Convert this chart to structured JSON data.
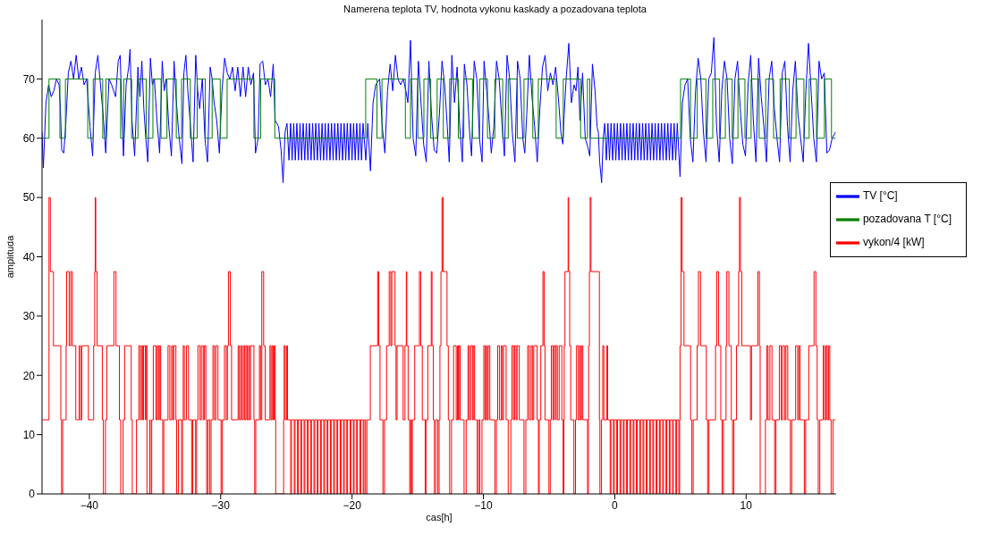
{
  "chart_data": {
    "type": "line",
    "title": "Namerena teplota TV, hodnota vykonu  kaskady a pozadovana teplota",
    "xlabel": "cas[h]",
    "ylabel": "amplituda",
    "xlim": [
      -43.6,
      16.85
    ],
    "xticks": [
      -40,
      -30,
      -20,
      -10,
      0,
      10
    ],
    "ylim": [
      0,
      80
    ],
    "yticks": [
      0,
      10,
      20,
      30,
      40,
      50,
      60,
      70
    ],
    "grid": false,
    "legend": "right",
    "series": [
      {
        "name": "TV [°C]",
        "color": "#0000ff",
        "x": [
          -43.6,
          -43.5,
          -43.3,
          -43.1,
          -42.9,
          -42.7,
          -42.5,
          -42.3,
          -42.2,
          -42.1,
          -41.95,
          -41.8,
          -41.6,
          -41.4,
          -41.2,
          -41.0,
          -40.8,
          -40.6,
          -40.4,
          -40.2,
          -39.95,
          -39.75,
          -39.55,
          -39.35,
          -39.15,
          -38.95,
          -38.75,
          -38.5,
          -38.3,
          -38.0,
          -37.8,
          -37.65,
          -37.5,
          -37.4,
          -37.2,
          -37.0,
          -36.9,
          -36.75,
          -36.55,
          -36.3,
          -36.15,
          -36.0,
          -35.85,
          -35.7,
          -35.55,
          -35.35,
          -35.2,
          -35.05,
          -34.85,
          -34.65,
          -34.45,
          -34.3,
          -34.15,
          -33.95,
          -33.75,
          -33.55,
          -33.4,
          -33.2,
          -32.95,
          -32.8,
          -32.65,
          -32.5,
          -32.3,
          -32.1,
          -31.9,
          -31.75,
          -31.6,
          -31.4,
          -31.2,
          -31.0,
          -30.8,
          -30.65,
          -30.5,
          -30.3,
          -30.1,
          -29.9,
          -29.7,
          -29.5,
          -29.3,
          -29.1,
          -28.9,
          -28.7,
          -28.5,
          -28.3,
          -28.1,
          -27.9,
          -27.7,
          -27.5,
          -27.35,
          -27.15,
          -27.0,
          -26.8,
          -26.6,
          -26.4,
          -26.2,
          -26.0,
          -25.85,
          -25.6,
          -25.4,
          -25.25,
          -25.1,
          -24.95,
          -24.8,
          -24.68,
          -24.56,
          -24.44,
          -24.32,
          -24.2,
          -24.08,
          -23.96,
          -23.84,
          -23.72,
          -23.6,
          -23.48,
          -23.36,
          -23.24,
          -23.12,
          -23.0,
          -22.88,
          -22.76,
          -22.64,
          -22.52,
          -22.4,
          -22.28,
          -22.16,
          -22.04,
          -21.92,
          -21.8,
          -21.68,
          -21.56,
          -21.44,
          -21.32,
          -21.2,
          -21.08,
          -20.96,
          -20.84,
          -20.72,
          -20.6,
          -20.48,
          -20.36,
          -20.24,
          -20.12,
          -20.0,
          -19.88,
          -19.76,
          -19.64,
          -19.52,
          -19.4,
          -19.28,
          -19.16,
          -18.95,
          -18.8,
          -18.6,
          -18.4,
          -18.2,
          -18.05,
          -17.9,
          -17.7,
          -17.5,
          -17.3,
          -17.1,
          -16.9,
          -16.7,
          -16.5,
          -16.3,
          -16.1,
          -15.9,
          -15.75,
          -15.55,
          -15.35,
          -15.15,
          -14.95,
          -14.75,
          -14.55,
          -14.35,
          -14.15,
          -13.95,
          -13.75,
          -13.55,
          -13.35,
          -13.15,
          -12.95,
          -12.75,
          -12.6,
          -12.4,
          -12.2,
          -12.0,
          -11.8,
          -11.6,
          -11.45,
          -11.25,
          -11.05,
          -10.9,
          -10.7,
          -10.5,
          -10.3,
          -10.1,
          -9.95,
          -9.75,
          -9.6,
          -9.4,
          -9.2,
          -9.0,
          -8.8,
          -8.6,
          -8.4,
          -8.2,
          -8.0,
          -7.8,
          -7.6,
          -7.4,
          -7.2,
          -7.0,
          -6.85,
          -6.7,
          -6.5,
          -6.3,
          -6.1,
          -5.9,
          -5.7,
          -5.5,
          -5.3,
          -5.1,
          -4.9,
          -4.7,
          -4.5,
          -4.3,
          -4.1,
          -3.95,
          -3.85,
          -3.7,
          -3.5,
          -3.3,
          -3.1,
          -2.95,
          -2.8,
          -2.65,
          -2.45,
          -2.25,
          -2.05,
          -1.9,
          -1.7,
          -1.5,
          -1.35,
          -1.25,
          -1.15,
          -1.0,
          -0.88,
          -0.76,
          -0.64,
          -0.52,
          -0.4,
          -0.28,
          -0.16,
          -0.04,
          0.08,
          0.2,
          0.32,
          0.44,
          0.56,
          0.68,
          0.8,
          0.92,
          1.04,
          1.16,
          1.28,
          1.4,
          1.52,
          1.64,
          1.76,
          1.88,
          2.0,
          2.12,
          2.24,
          2.36,
          2.48,
          2.6,
          2.72,
          2.84,
          2.96,
          3.08,
          3.2,
          3.32,
          3.44,
          3.56,
          3.68,
          3.8,
          3.92,
          4.04,
          4.16,
          4.28,
          4.4,
          4.52,
          4.64,
          4.76,
          4.97,
          5.15,
          5.35,
          5.55,
          5.75,
          5.95,
          6.15,
          6.35,
          6.55,
          6.75,
          6.95,
          7.15,
          7.35,
          7.55,
          7.75,
          7.95,
          8.15,
          8.35,
          8.55,
          8.75,
          8.95,
          9.15,
          9.35,
          9.55,
          9.75,
          9.95,
          10.15,
          10.35,
          10.55,
          10.75,
          10.95,
          11.15,
          11.35,
          11.55,
          11.75,
          11.95,
          12.15,
          12.35,
          12.55,
          12.75,
          12.95,
          13.15,
          13.35,
          13.55,
          13.75,
          13.95,
          14.15,
          14.35,
          14.55,
          14.75,
          14.95,
          15.15,
          15.35,
          15.55,
          15.75,
          15.95,
          16.15,
          16.35,
          16.55,
          16.8
        ],
        "values": [
          61,
          55,
          66,
          69,
          67,
          68,
          70,
          69,
          65,
          58,
          57.5,
          62,
          71,
          73,
          70,
          74,
          70,
          72,
          69,
          70,
          62,
          57,
          71,
          74,
          69,
          64,
          57.5,
          70,
          69,
          67,
          73,
          74,
          63,
          57,
          69,
          72,
          75,
          63,
          57,
          72,
          67,
          73,
          65,
          60,
          56,
          73.5,
          69,
          70,
          63,
          57.5,
          73,
          68,
          70,
          62,
          57,
          73,
          67,
          61,
          55.7,
          71,
          74,
          68,
          62,
          56,
          74,
          68,
          65,
          70,
          60,
          56,
          72,
          70,
          66,
          63,
          57.5,
          68,
          73.5,
          71,
          70,
          72,
          68,
          72,
          67,
          72,
          67,
          72,
          69,
          71,
          57.5,
          60,
          72.5,
          73,
          69,
          70,
          67,
          72.5,
          63,
          62,
          58,
          52.5,
          61,
          62.5,
          56.3,
          62.5,
          56.3,
          62.5,
          56.3,
          62.5,
          56.3,
          62.5,
          56.3,
          62.5,
          56.3,
          62.5,
          56.3,
          62.5,
          56.3,
          62.5,
          56.3,
          62.5,
          56.3,
          62.5,
          56.3,
          62.5,
          56.3,
          62.5,
          56.3,
          62.5,
          56.3,
          62.5,
          56.3,
          62.5,
          56.3,
          62.5,
          56.3,
          62.5,
          56.3,
          62.5,
          56.3,
          62.5,
          56.3,
          62.5,
          56.3,
          62.5,
          56.3,
          62.5,
          56.3,
          62.5,
          56.3,
          62.5,
          56.3,
          62.5,
          54.5,
          66,
          69,
          69.5,
          70,
          62,
          57.5,
          68,
          72.5,
          68,
          74,
          70,
          69,
          70,
          68,
          66,
          76.5,
          60,
          57,
          73,
          66,
          59,
          56,
          73,
          64,
          58,
          57.5,
          64,
          73,
          69,
          62,
          56,
          74,
          66,
          72,
          62,
          56,
          72.5,
          69,
          61,
          57,
          73,
          70,
          60,
          56,
          73,
          68,
          64,
          57.5,
          62,
          73,
          70,
          63,
          57,
          74,
          70,
          61,
          56,
          73,
          70,
          60,
          57.5,
          64,
          74,
          67,
          62,
          56,
          65,
          72,
          74,
          68,
          71,
          69,
          72,
          67,
          61,
          59,
          64,
          70,
          76,
          66,
          69,
          68,
          72,
          63,
          71,
          60,
          58.5,
          57,
          72.5,
          68,
          62,
          61,
          56,
          52.5,
          60,
          62.5,
          56.3,
          62.5,
          56.3,
          62.5,
          56.3,
          62.5,
          56.3,
          62.5,
          56.3,
          62.5,
          56.3,
          62.5,
          56.3,
          62.5,
          56.3,
          62.5,
          56.3,
          62.5,
          56.3,
          62.5,
          56.3,
          62.5,
          56.3,
          62.5,
          56.3,
          62.5,
          56.3,
          62.5,
          56.3,
          62.5,
          56.3,
          62.5,
          56.3,
          62.5,
          56.3,
          62.5,
          56.3,
          62.5,
          56.3,
          62.5,
          56.3,
          62.5,
          56.3,
          62.5,
          56.3,
          62.5,
          53.5,
          66,
          69,
          70,
          60,
          56,
          68,
          73.5,
          70,
          61,
          56,
          70,
          71,
          77,
          62,
          56,
          68,
          73,
          70,
          60,
          55.7,
          70,
          73,
          65,
          59,
          57,
          69,
          74,
          63,
          56,
          73.5,
          67,
          62,
          56,
          70,
          73,
          65,
          60,
          56,
          71,
          73,
          62,
          56,
          68,
          73,
          64,
          60,
          56,
          68,
          76,
          68,
          60,
          56,
          73,
          70,
          71,
          57.5,
          58,
          60,
          61
        ]
      },
      {
        "name": "pozadovana T [°C]",
        "color": "#008000",
        "type": "step",
        "x": [
          -43.57,
          -43.07,
          -42.24,
          -41.82,
          -40.12,
          -39.7,
          -38.98,
          -38.74,
          -37.62,
          -37.38,
          -36.78,
          -36.3,
          -35.67,
          -35.16,
          -34.54,
          -34.09,
          -33.38,
          -32.98,
          -32.31,
          -31.79,
          -31.17,
          -30.65,
          -30.03,
          -29.51,
          -27.47,
          -26.95,
          -25.88,
          -18.96,
          -18.1,
          -17.72,
          -15.94,
          -15.55,
          -14.99,
          -14.53,
          -14.01,
          -13.52,
          -13.05,
          -12.57,
          -11.91,
          -11.49,
          -10.83,
          -10.29,
          -9.69,
          -9.13,
          -8.53,
          -8.11,
          -7.42,
          -6.91,
          -6.24,
          -5.82,
          -4.46,
          -3.92,
          -2.6,
          -2.08,
          -1.9,
          5.01,
          5.77,
          6.28,
          6.94,
          7.46,
          7.98,
          8.42,
          8.94,
          9.38,
          9.91,
          10.38,
          10.99,
          11.49,
          12.09,
          12.59,
          13.29,
          13.8,
          14.4,
          14.8,
          15.36,
          15.96,
          16.5,
          16.8
        ],
        "values": [
          60,
          70,
          60,
          70,
          60,
          70,
          60,
          70,
          60,
          70,
          60,
          70,
          60,
          70,
          60,
          70,
          60,
          70,
          60,
          70,
          60,
          70,
          60,
          70,
          60,
          70,
          60,
          70,
          60,
          70,
          60,
          70,
          60,
          70,
          60,
          70,
          60,
          70,
          60,
          70,
          60,
          70,
          60,
          70,
          60,
          70,
          60,
          70,
          60,
          70,
          60,
          70,
          60,
          70,
          60,
          70,
          60,
          70,
          60,
          70,
          60,
          70,
          60,
          70,
          60,
          70,
          60,
          70,
          60,
          70,
          60,
          70,
          60,
          70,
          60,
          70,
          60,
          60
        ]
      },
      {
        "name": "vykon/4 [kW]",
        "color": "#ff0000",
        "type": "step",
        "x": [
          -43.57,
          -43.07,
          -42.97,
          -42.73,
          -42.17,
          -42.11,
          -42.03,
          -41.77,
          -41.73,
          -41.53,
          -41.41,
          -41.29,
          -41.03,
          -40.77,
          -40.67,
          -40.57,
          -40.07,
          -39.67,
          -39.59,
          -39.55,
          -39.51,
          -39.41,
          -39.01,
          -38.93,
          -38.77,
          -38.67,
          -38.13,
          -37.97,
          -37.71,
          -37.61,
          -37.43,
          -37.31,
          -36.81,
          -36.73,
          -36.41,
          -36.23,
          -36.11,
          -36.03,
          -35.93,
          -35.87,
          -35.73,
          -35.69,
          -35.61,
          -35.41,
          -35.37,
          -35.25,
          -35.13,
          -34.93,
          -34.83,
          -34.73,
          -34.67,
          -34.57,
          -34.41,
          -34.33,
          -34.01,
          -33.87,
          -33.73,
          -33.65,
          -33.57,
          -33.41,
          -33.35,
          -33.21,
          -32.97,
          -32.91,
          -32.85,
          -32.77,
          -32.61,
          -32.45,
          -32.21,
          -32.13,
          -31.91,
          -31.83,
          -31.73,
          -31.57,
          -31.47,
          -31.33,
          -31.25,
          -31.13,
          -31.07,
          -30.97,
          -30.83,
          -30.73,
          -30.59,
          -30.47,
          -30.37,
          -30.21,
          -29.97,
          -29.87,
          -29.71,
          -29.57,
          -29.49,
          -29.41,
          -29.27,
          -29.17,
          -28.67,
          -28.57,
          -28.47,
          -28.37,
          -28.27,
          -28.17,
          -28.07,
          -27.97,
          -27.87,
          -27.81,
          -27.73,
          -27.47,
          -27.41,
          -27.33,
          -27.05,
          -26.97,
          -26.87,
          -26.73,
          -26.61,
          -26.25,
          -26.17,
          -26.09,
          -26.01,
          -25.93,
          -25.85,
          -25.81,
          -25.21,
          -25.17,
          -25.09,
          -24.97,
          -24.91,
          -24.67,
          -24.61,
          -24.4,
          -24.34,
          -24.15,
          -24.09,
          -23.9,
          -23.84,
          -23.65,
          -23.59,
          -23.4,
          -23.34,
          -23.15,
          -23.09,
          -22.9,
          -22.84,
          -22.65,
          -22.59,
          -22.4,
          -22.34,
          -22.15,
          -22.09,
          -21.9,
          -21.84,
          -21.65,
          -21.59,
          -21.4,
          -21.34,
          -21.15,
          -21.09,
          -20.9,
          -20.84,
          -20.65,
          -20.59,
          -20.4,
          -20.34,
          -20.15,
          -20.09,
          -19.9,
          -19.84,
          -19.65,
          -19.59,
          -19.4,
          -19.34,
          -19.15,
          -19.09,
          -18.97,
          -18.87,
          -18.61,
          -18.05,
          -17.97,
          -17.87,
          -17.65,
          -17.53,
          -17.37,
          -17.17,
          -17.05,
          -16.97,
          -16.73,
          -16.65,
          -16.57,
          -16.11,
          -15.97,
          -15.87,
          -15.83,
          -15.73,
          -15.61,
          -15.53,
          -15.47,
          -15.41,
          -15.23,
          -14.87,
          -14.77,
          -14.65,
          -14.43,
          -14.37,
          -14.23,
          -13.97,
          -13.91,
          -13.81,
          -13.73,
          -13.63,
          -13.47,
          -13.37,
          -13.31,
          -13.23,
          -13.15,
          -13.07,
          -12.77,
          -12.67,
          -12.57,
          -12.43,
          -12.27,
          -12.07,
          -11.97,
          -11.91,
          -11.87,
          -11.77,
          -11.47,
          -11.31,
          -11.17,
          -11.07,
          -10.97,
          -10.83,
          -10.77,
          -10.67,
          -10.47,
          -10.37,
          -10.27,
          -10.11,
          -9.97,
          -9.87,
          -9.77,
          -9.71,
          -9.63,
          -9.51,
          -9.13,
          -9.01,
          -8.91,
          -8.77,
          -8.63,
          -8.55,
          -8.47,
          -8.27,
          -8.11,
          -7.91,
          -7.83,
          -7.71,
          -7.63,
          -7.51,
          -7.43,
          -7.27,
          -6.91,
          -6.77,
          -6.63,
          -6.51,
          -6.37,
          -6.27,
          -6.17,
          -5.91,
          -5.81,
          -5.75,
          -5.63,
          -5.47,
          -5.37,
          -5.31,
          -5.01,
          -4.91,
          -4.83,
          -4.71,
          -4.63,
          -4.51,
          -4.47,
          -4.37,
          -4.23,
          -4.03,
          -3.93,
          -3.87,
          -3.85,
          -3.79,
          -3.55,
          -3.51,
          -3.43,
          -3.35,
          -3.11,
          -2.99,
          -2.91,
          -2.77,
          -2.67,
          -2.61,
          -2.53,
          -2.43,
          -2.07,
          -2.01,
          -1.99,
          -1.93,
          -1.87,
          -1.81,
          -1.17,
          -1.13,
          -1.01,
          -0.91,
          -0.83,
          -0.6,
          -0.54,
          -0.35,
          -0.29,
          -0.1,
          -0.04,
          0.15,
          0.21,
          0.4,
          0.46,
          0.65,
          0.71,
          0.9,
          0.96,
          1.15,
          1.21,
          1.4,
          1.46,
          1.65,
          1.71,
          1.9,
          1.96,
          2.15,
          2.21,
          2.4,
          2.46,
          2.65,
          2.71,
          2.9,
          2.96,
          3.15,
          3.21,
          3.4,
          3.46,
          3.65,
          3.71,
          3.9,
          3.96,
          4.15,
          4.21,
          4.4,
          4.46,
          4.65,
          4.71,
          4.88,
          4.94,
          4.97,
          5.05,
          5.13,
          5.27,
          5.77,
          5.87,
          5.97,
          6.27,
          6.37,
          6.53,
          6.97,
          7.07,
          7.17,
          7.67,
          7.77,
          7.91,
          8.07,
          8.17,
          8.27,
          8.47,
          8.53,
          8.69,
          8.87,
          8.97,
          9.07,
          9.27,
          9.43,
          9.49,
          9.57,
          9.67,
          10.33,
          10.41,
          10.89,
          11.01,
          11.07,
          11.47,
          11.57,
          11.67,
          11.81,
          11.97,
          12.17,
          12.27,
          12.53,
          12.67,
          12.77,
          12.93,
          13.03,
          13.17,
          13.37,
          13.47,
          13.77,
          13.93,
          14.01,
          14.11,
          14.43,
          14.53,
          14.77,
          15.17,
          15.31,
          15.41,
          15.49,
          15.61,
          15.87,
          15.97,
          16.07,
          16.17,
          16.27,
          16.37,
          16.47,
          16.61,
          16.8
        ],
        "values": [
          12.5,
          50,
          37.5,
          25,
          12.5,
          0,
          12.5,
          25,
          37.5,
          25,
          37.5,
          25,
          12.5,
          25,
          12.5,
          25,
          12.5,
          25,
          37.5,
          50,
          37.5,
          25,
          12.5,
          0,
          12.5,
          25,
          37.5,
          25,
          12.5,
          0,
          12.5,
          25,
          12.5,
          0,
          12.5,
          25,
          12.5,
          25,
          12.5,
          25,
          12.5,
          25,
          0,
          12.5,
          0,
          12.5,
          25,
          12.5,
          25,
          12.5,
          25,
          12.5,
          0,
          12.5,
          25,
          12.5,
          25,
          12.5,
          25,
          12.5,
          0,
          12.5,
          0,
          12.5,
          25,
          12.5,
          25,
          12.5,
          0,
          12.5,
          0,
          12.5,
          25,
          12.5,
          25,
          12.5,
          25,
          12.5,
          0,
          12.5,
          0,
          12.5,
          25,
          12.5,
          25,
          12.5,
          0,
          12.5,
          25,
          12.5,
          25,
          37.5,
          25,
          12.5,
          25,
          12.5,
          25,
          12.5,
          25,
          12.5,
          25,
          12.5,
          25,
          12.5,
          25,
          12.5,
          0,
          12.5,
          25,
          12.5,
          37.5,
          25,
          12.5,
          25,
          12.5,
          25,
          12.5,
          25,
          12.5,
          0,
          12.5,
          25,
          12.5,
          25,
          12.5,
          0,
          12.5,
          0,
          12.5,
          0,
          12.5,
          0,
          12.5,
          0,
          12.5,
          0,
          12.5,
          0,
          12.5,
          0,
          12.5,
          0,
          12.5,
          0,
          12.5,
          0,
          12.5,
          0,
          12.5,
          0,
          12.5,
          0,
          12.5,
          0,
          12.5,
          0,
          12.5,
          0,
          12.5,
          0,
          12.5,
          0,
          12.5,
          0,
          12.5,
          0,
          12.5,
          0,
          12.5,
          0,
          12.5,
          0,
          12.5,
          25,
          37.5,
          25,
          12.5,
          0,
          12.5,
          25,
          37.5,
          25,
          37.5,
          25,
          12.5,
          25,
          12.5,
          25,
          37.5,
          25,
          12.5,
          0,
          12.5,
          0,
          12.5,
          25,
          37.5,
          25,
          12.5,
          0,
          12.5,
          25,
          37.5,
          25,
          12.5,
          0,
          12.5,
          0,
          12.5,
          25,
          37.5,
          50,
          37.5,
          25,
          12.5,
          0,
          12.5,
          25,
          12.5,
          25,
          12.5,
          25,
          12.5,
          0,
          12.5,
          25,
          12.5,
          25,
          12.5,
          25,
          12.5,
          0,
          12.5,
          0,
          12.5,
          25,
          12.5,
          25,
          12.5,
          25,
          12.5,
          0,
          12.5,
          25,
          12.5,
          25,
          12.5,
          25,
          12.5,
          0,
          12.5,
          25,
          12.5,
          25,
          12.5,
          25,
          12.5,
          0,
          12.5,
          25,
          12.5,
          25,
          12.5,
          25,
          12.5,
          0,
          12.5,
          25,
          37.5,
          25,
          12.5,
          0,
          12.5,
          25,
          12.5,
          25,
          12.5,
          25,
          12.5,
          25,
          12.5,
          0,
          12.5,
          25,
          37.5,
          50,
          37.5,
          25,
          12.5,
          0,
          12.5,
          25,
          12.5,
          25,
          12.5,
          25,
          12.5,
          0,
          12.5,
          25,
          37.5,
          50,
          37.5,
          12.5,
          0,
          12.5,
          25,
          12.5,
          25,
          12.5,
          0,
          12.5,
          0,
          12.5,
          0,
          12.5,
          0,
          12.5,
          0,
          12.5,
          0,
          12.5,
          0,
          12.5,
          0,
          12.5,
          0,
          12.5,
          0,
          12.5,
          0,
          12.5,
          0,
          12.5,
          0,
          12.5,
          0,
          12.5,
          0,
          12.5,
          0,
          12.5,
          0,
          12.5,
          0,
          12.5,
          0,
          12.5,
          0,
          12.5,
          0,
          12.5,
          0,
          12.5,
          25,
          50,
          37.5,
          25,
          12.5,
          0,
          12.5,
          25,
          37.5,
          25,
          12.5,
          0,
          12.5,
          25,
          37.5,
          25,
          12.5,
          0,
          12.5,
          25,
          37.5,
          25,
          12.5,
          0,
          12.5,
          25,
          37.5,
          50,
          37.5,
          25,
          12.5,
          25,
          37.5,
          25,
          0,
          12.5,
          25,
          12.5,
          25,
          12.5,
          0,
          12.5,
          25,
          12.5,
          25,
          12.5,
          25,
          12.5,
          0,
          12.5,
          25,
          12.5,
          25,
          12.5,
          0,
          12.5,
          25,
          37.5,
          25,
          12.5,
          0,
          12.5,
          25,
          12.5,
          25,
          12.5,
          25,
          12.5,
          0,
          12.5,
          12.5
        ]
      }
    ]
  }
}
